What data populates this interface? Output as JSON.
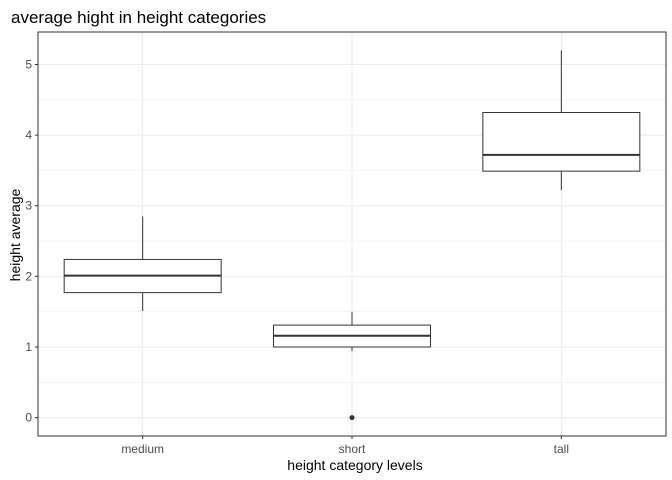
{
  "chart_data": {
    "type": "boxplot",
    "title": "average hight in height categories",
    "xlabel": "height category levels",
    "ylabel": "height average",
    "categories": [
      "medium",
      "short",
      "tall"
    ],
    "boxes": [
      {
        "category": "medium",
        "whisker_low": 1.51,
        "q1": 1.77,
        "median": 2.01,
        "q3": 2.24,
        "whisker_high": 2.85,
        "outliers": []
      },
      {
        "category": "short",
        "whisker_low": 0.94,
        "q1": 1.0,
        "median": 1.16,
        "q3": 1.31,
        "whisker_high": 1.5,
        "outliers": [
          0.0
        ]
      },
      {
        "category": "tall",
        "whisker_low": 3.22,
        "q1": 3.49,
        "median": 3.72,
        "q3": 4.32,
        "whisker_high": 5.2,
        "outliers": []
      }
    ],
    "y_ticks": [
      0,
      1,
      2,
      3,
      4,
      5
    ],
    "ylim": [
      -0.26,
      5.46
    ],
    "grid": true,
    "colors": {
      "box_fill": "#ffffff",
      "box_stroke": "#333333",
      "grid": "#ebebeb",
      "panel_border": "#333333"
    }
  }
}
